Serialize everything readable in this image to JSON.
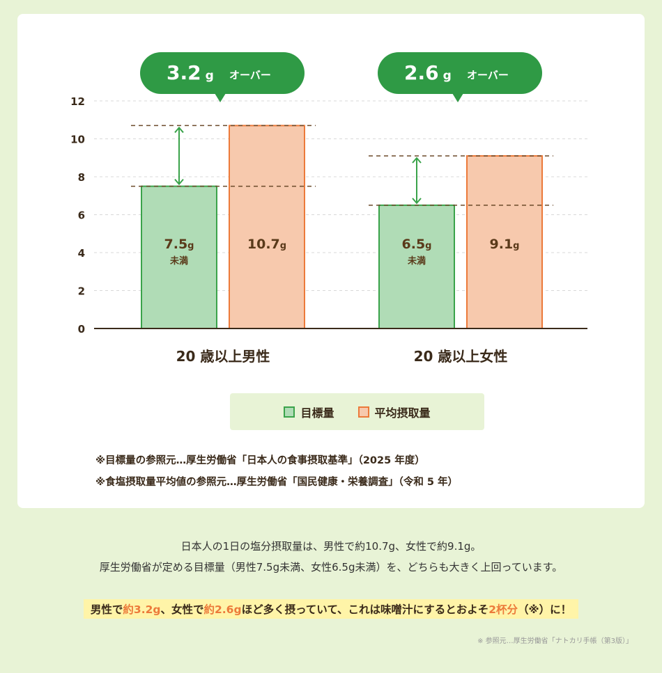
{
  "chart_data": {
    "type": "bar",
    "categories": [
      "20 歳以上男性",
      "20 歳以上女性"
    ],
    "series": [
      {
        "name": "目標量",
        "values": [
          7.5,
          6.5
        ],
        "labels": [
          "7.5",
          "6.5"
        ],
        "unit": "g",
        "sublabel": "未満",
        "color": "#b0dcb6",
        "border": "#3aa34a"
      },
      {
        "name": "平均摂取量",
        "values": [
          10.7,
          9.1
        ],
        "labels": [
          "10.7",
          "9.1"
        ],
        "unit": "g",
        "color": "#f7c9ad",
        "border": "#ec7a3a"
      }
    ],
    "yticks": [
      0,
      2,
      4,
      6,
      8,
      10,
      12
    ],
    "ylim": [
      0,
      12
    ],
    "grid": true,
    "callouts": [
      {
        "value": "3.2",
        "unit": "g",
        "text": "オーバー"
      },
      {
        "value": "2.6",
        "unit": "g",
        "text": "オーバー"
      }
    ],
    "callout_color": "#2f9a45",
    "arrow_color": "#3aa34a"
  },
  "legend": {
    "target": "目標量",
    "average": "平均摂取量"
  },
  "notes": [
    "※目標量の参照元…厚生労働省「日本人の食事摂取基準」（2025 年度）",
    "※食塩摂取量平均値の参照元…厚生労働省「国民健康・栄養調査」（令和 5 年）"
  ],
  "summary": {
    "line1": "日本人の1日の塩分摂取量は、男性で約10.7g、女性で約9.1g。",
    "line2": "厚生労働省が定める目標量（男性7.5g未満、女性6.5g未満）を、どちらも大きく上回っています。"
  },
  "highlight": {
    "p1": "男性で",
    "n1": "約3.2g",
    "p2": "、女性で",
    "n2": "約2.6g",
    "p3": "ほど多く摂っていて、これは味噌汁にするとおよそ",
    "n3": "2杯分",
    "p4": "（※）に！"
  },
  "source": "※ 参照元…厚生労働省「ナトカリ手帳（第3版）」"
}
